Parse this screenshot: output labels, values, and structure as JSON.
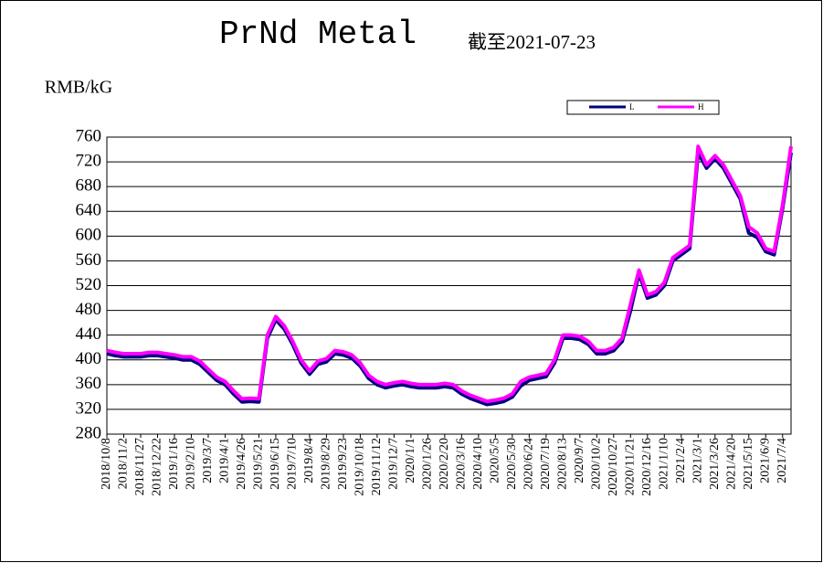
{
  "chart_data": {
    "type": "line",
    "title": "PrNd Metal",
    "subtitle": "截至2021-07-23",
    "y_label": "RMB/kG",
    "categories": [
      "2018/10/8",
      null,
      "2018/11/2",
      null,
      "2018/11/27",
      null,
      "2018/12/22",
      null,
      "2019/1/16",
      null,
      "2019/2/10",
      null,
      "2019/3/7",
      null,
      "2019/4/1",
      null,
      "2019/4/26",
      null,
      "2019/5/21",
      null,
      "2019/6/15",
      null,
      "2019/7/10",
      null,
      "2019/8/4",
      null,
      "2019/8/29",
      null,
      "2019/9/23",
      null,
      "2019/10/18",
      null,
      "2019/11/12",
      null,
      "2019/12/7",
      null,
      "2020/1/1",
      null,
      "2020/1/26",
      null,
      "2020/2/20",
      null,
      "2020/3/16",
      null,
      "2020/4/10",
      null,
      "2020/5/5",
      null,
      "2020/5/30",
      null,
      "2020/6/24",
      null,
      "2020/7/19",
      null,
      "2020/8/13",
      null,
      "2020/9/7",
      null,
      "2020/10/2",
      null,
      "2020/10/27",
      null,
      "2020/11/21",
      null,
      "2020/12/16",
      null,
      "2021/1/10",
      null,
      "2021/2/4",
      null,
      "2021/3/1",
      null,
      "2021/3/26",
      null,
      "2021/4/20",
      null,
      "2021/5/15",
      null,
      "2021/6/9",
      null,
      "2021/7/4",
      null
    ],
    "series": [
      {
        "name": "L",
        "color": "#000080",
        "values": [
          410,
          407,
          405,
          405,
          405,
          407,
          407,
          405,
          403,
          400,
          400,
          393,
          380,
          367,
          360,
          345,
          332,
          333,
          332,
          435,
          465,
          450,
          425,
          395,
          377,
          393,
          397,
          410,
          408,
          403,
          390,
          370,
          360,
          355,
          358,
          360,
          357,
          355,
          355,
          355,
          357,
          355,
          345,
          338,
          333,
          328,
          330,
          333,
          340,
          358,
          367,
          370,
          373,
          395,
          435,
          435,
          433,
          425,
          410,
          410,
          415,
          430,
          480,
          540,
          500,
          505,
          520,
          560,
          570,
          580,
          735,
          710,
          725,
          710,
          685,
          660,
          605,
          598,
          575,
          570,
          645,
          735
        ]
      },
      {
        "name": "H",
        "color": "#ff00ff",
        "values": [
          415,
          412,
          410,
          410,
          410,
          412,
          412,
          410,
          408,
          405,
          405,
          398,
          385,
          372,
          365,
          350,
          337,
          338,
          337,
          440,
          470,
          455,
          430,
          400,
          382,
          398,
          402,
          415,
          413,
          408,
          395,
          375,
          365,
          360,
          363,
          365,
          362,
          360,
          360,
          360,
          362,
          360,
          350,
          343,
          338,
          333,
          335,
          338,
          345,
          365,
          372,
          375,
          378,
          400,
          440,
          440,
          438,
          430,
          415,
          415,
          420,
          435,
          490,
          545,
          505,
          510,
          525,
          565,
          575,
          585,
          745,
          715,
          730,
          715,
          690,
          665,
          615,
          605,
          580,
          575,
          650,
          745
        ]
      }
    ],
    "ylim": [
      280,
      760
    ],
    "yticks": [
      280,
      320,
      360,
      400,
      440,
      480,
      520,
      560,
      600,
      640,
      680,
      720,
      760
    ],
    "grid": true
  }
}
